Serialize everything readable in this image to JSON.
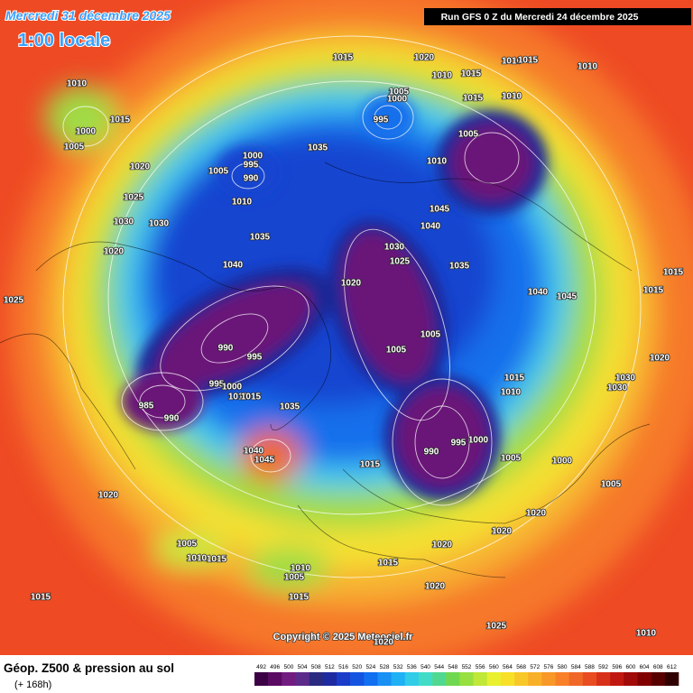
{
  "header": {
    "date": "Mercredi 31 décembre 2025",
    "time": "1:00 locale",
    "run": "Run GFS 0 Z du Mercredi 24 décembre 2025"
  },
  "map": {
    "copyright": "Copyright © 2025 Meteociel.fr",
    "isobar_labels": [
      "1010",
      "1015",
      "1000",
      "1005",
      "1020",
      "1025",
      "1030",
      "1030",
      "1020",
      "1025",
      "1005",
      "1000",
      "995",
      "990",
      "1010",
      "1035",
      "1040",
      "1035",
      "1015",
      "1020",
      "1010",
      "1015",
      "1010",
      "1015",
      "1010",
      "1005",
      "1000",
      "995",
      "1015",
      "1010",
      "1005",
      "1010",
      "1045",
      "1040",
      "1030",
      "1025",
      "1035",
      "1020",
      "1040",
      "1045",
      "1015",
      "1015",
      "1005",
      "1005",
      "1020",
      "1015",
      "1010",
      "1030",
      "1030",
      "990",
      "995",
      "995",
      "1000",
      "1010",
      "1015",
      "985",
      "990",
      "1035",
      "990",
      "995",
      "1000",
      "1005",
      "1000",
      "1040",
      "1045",
      "1015",
      "1005",
      "1020",
      "1020",
      "1020",
      "1020",
      "1005",
      "1010",
      "1015",
      "1010",
      "1005",
      "1015",
      "1020",
      "1015",
      "1015",
      "1025",
      "1010",
      "1020"
    ]
  },
  "footer": {
    "title": "Géop. Z500 & pression au sol",
    "lead": "(+ 168h)"
  },
  "colorbar": {
    "levels": [
      492,
      496,
      500,
      504,
      508,
      512,
      516,
      520,
      524,
      528,
      532,
      536,
      540,
      544,
      548,
      552,
      556,
      560,
      564,
      568,
      572,
      576,
      580,
      584,
      588,
      592,
      596,
      600,
      604,
      608,
      612
    ],
    "colors": [
      "#3c0044",
      "#5a0a62",
      "#731c80",
      "#5c2a8a",
      "#2a2a80",
      "#1e2aa0",
      "#1a3cc8",
      "#1454e0",
      "#1070f0",
      "#1890f4",
      "#20b0f4",
      "#30cce8",
      "#40dcc8",
      "#50d890",
      "#70d850",
      "#98e040",
      "#c0e838",
      "#e8f030",
      "#f8e028",
      "#f8c828",
      "#f8b028",
      "#f89828",
      "#f88028",
      "#f06828",
      "#e84c20",
      "#d83018",
      "#c01810",
      "#a00a08",
      "#800000",
      "#580000",
      "#300000"
    ]
  }
}
